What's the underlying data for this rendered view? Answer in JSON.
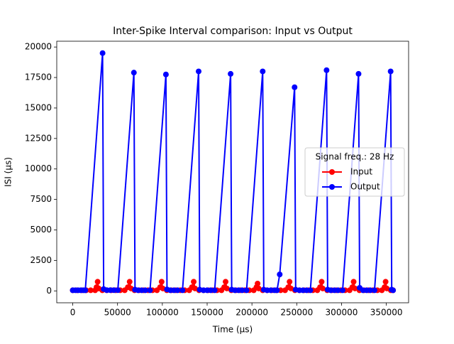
{
  "chart_data": {
    "type": "line",
    "title": "Inter-Spike Interval comparison: Input vs Output",
    "x_label": "Time (μs)",
    "y_label": "ISI (μs)",
    "legend_title": "Signal freq.: 28 Hz",
    "legend_position": "center right",
    "xlim": [
      -17850,
      374850
    ],
    "ylim": [
      -975,
      20475
    ],
    "xticks": [
      0,
      50000,
      100000,
      150000,
      200000,
      250000,
      300000,
      350000
    ],
    "yticks": [
      0,
      2500,
      5000,
      7500,
      10000,
      12500,
      15000,
      17500,
      20000
    ],
    "series": [
      {
        "name": "Input",
        "color": "#ff0000",
        "x": [
          0,
          5000,
          10000,
          15000,
          20000,
          25000,
          26500,
          27800,
          29000,
          33000,
          38000,
          43000,
          48000,
          53000,
          58000,
          61500,
          63500,
          65000,
          69000,
          74000,
          79000,
          84000,
          89000,
          94000,
          97500,
          99200,
          100500,
          105000,
          110000,
          115000,
          120000,
          125000,
          130000,
          133000,
          135000,
          136500,
          141000,
          146000,
          151000,
          156000,
          161000,
          166000,
          169000,
          170600,
          172000,
          177000,
          182000,
          187000,
          192000,
          197000,
          202000,
          205000,
          206300,
          207500,
          212000,
          217000,
          222000,
          227000,
          232000,
          237000,
          240500,
          242000,
          243500,
          248000,
          253000,
          258000,
          263000,
          268000,
          273000,
          276000,
          277800,
          279000,
          284000,
          289000,
          294000,
          299000,
          304000,
          309000,
          312000,
          313500,
          315000,
          320000,
          325000,
          330000,
          335000,
          340000,
          345000,
          348000,
          349200,
          350500,
          355000,
          357500
        ],
        "values": [
          50,
          50,
          50,
          50,
          50,
          50,
          300,
          750,
          200,
          50,
          50,
          50,
          50,
          50,
          50,
          300,
          750,
          200,
          50,
          50,
          50,
          50,
          50,
          50,
          300,
          750,
          200,
          50,
          50,
          50,
          50,
          50,
          50,
          300,
          750,
          200,
          50,
          50,
          50,
          50,
          50,
          50,
          300,
          750,
          200,
          50,
          50,
          50,
          50,
          50,
          50,
          300,
          600,
          200,
          50,
          50,
          50,
          50,
          50,
          50,
          300,
          750,
          200,
          50,
          50,
          50,
          50,
          50,
          50,
          300,
          750,
          200,
          50,
          50,
          50,
          50,
          50,
          50,
          300,
          750,
          200,
          50,
          50,
          50,
          50,
          50,
          50,
          300,
          750,
          200,
          50,
          50
        ]
      },
      {
        "name": "Output",
        "color": "#0000ff",
        "x": [
          0,
          3000,
          6000,
          9000,
          12000,
          14000,
          33300,
          34500,
          38000,
          42000,
          46000,
          50300,
          68250,
          69500,
          73000,
          77000,
          81000,
          86250,
          104000,
          105200,
          109000,
          113000,
          117000,
          122500,
          140500,
          141700,
          146000,
          150000,
          154000,
          158400,
          176200,
          177400,
          181000,
          185000,
          189000,
          194000,
          212000,
          213200,
          217000,
          221000,
          225000,
          228000,
          231000,
          247600,
          248800,
          253000,
          257000,
          261000,
          265200,
          283300,
          284500,
          288000,
          292000,
          296000,
          301200,
          319000,
          320200,
          324000,
          328000,
          332000,
          336800,
          354800,
          356000,
          357500
        ],
        "values": [
          50,
          50,
          50,
          50,
          50,
          50,
          19500,
          150,
          60,
          60,
          60,
          60,
          17900,
          100,
          50,
          50,
          50,
          50,
          17750,
          120,
          50,
          50,
          50,
          50,
          18000,
          100,
          50,
          50,
          50,
          50,
          17800,
          100,
          50,
          50,
          50,
          50,
          18000,
          100,
          50,
          50,
          50,
          50,
          1350,
          16700,
          100,
          50,
          50,
          50,
          50,
          18100,
          100,
          50,
          50,
          50,
          50,
          17800,
          250,
          50,
          50,
          50,
          50,
          18000,
          100,
          50
        ]
      }
    ]
  }
}
